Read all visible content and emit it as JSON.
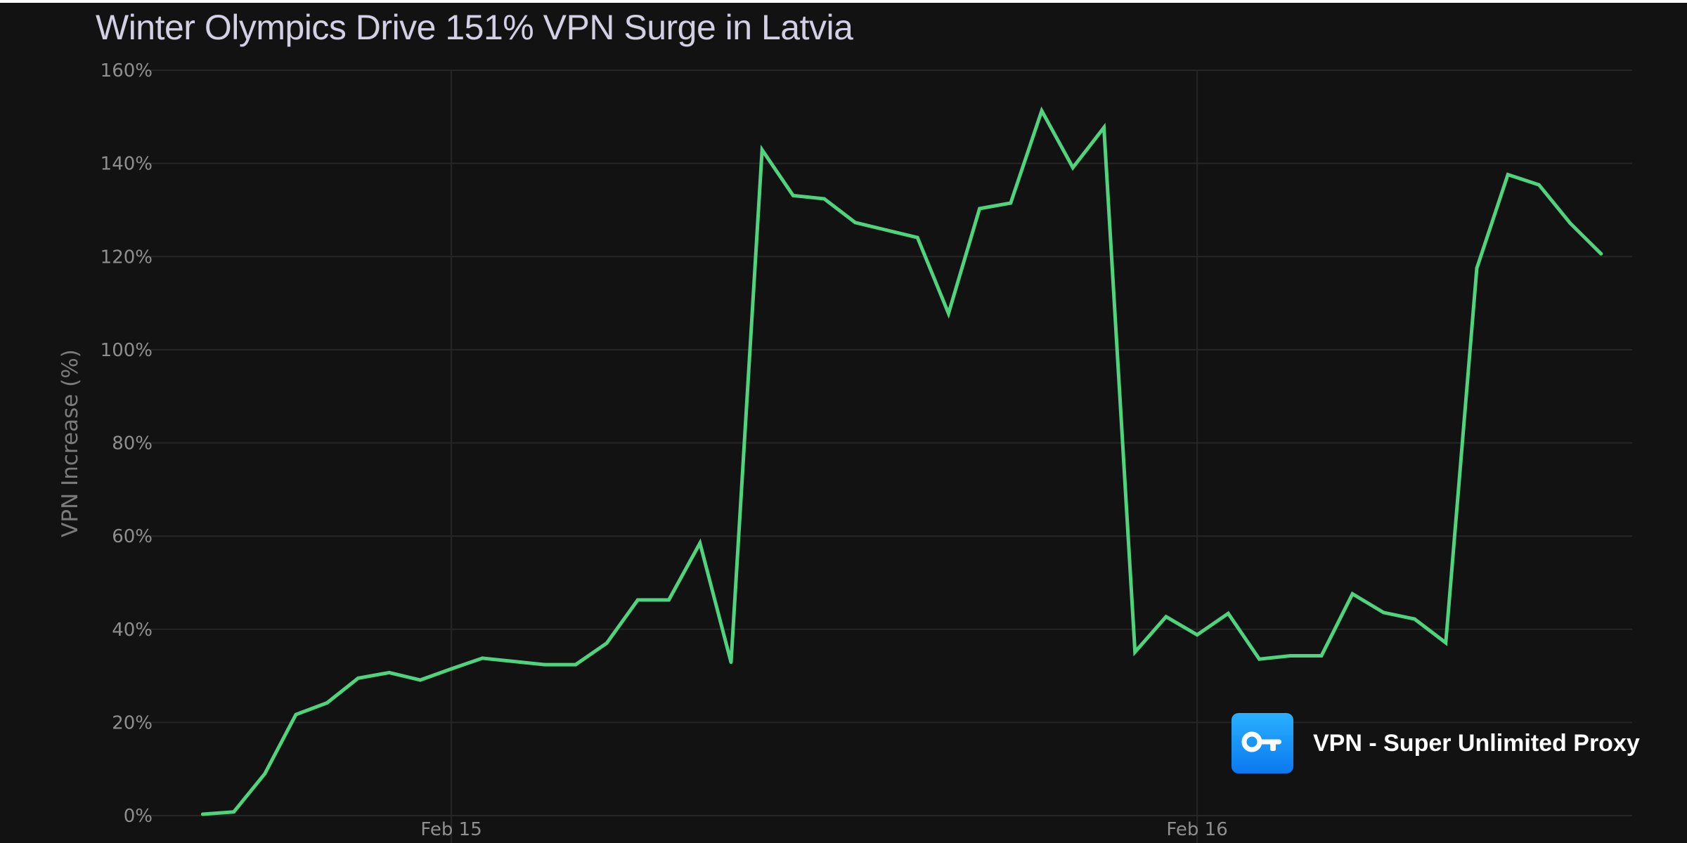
{
  "chart_data": {
    "type": "line",
    "title": "Winter Olympics Drive 151% VPN Surge in Latvia",
    "ylabel": "VPN Increase (%)",
    "xlabel": "",
    "ylim": [
      0,
      160
    ],
    "yticks": [
      "0%",
      "20%",
      "40%",
      "60%",
      "80%",
      "100%",
      "120%",
      "140%",
      "160%"
    ],
    "xticks": [
      {
        "label": "Feb 15",
        "time": "2026-02-15T00:00"
      },
      {
        "label": "Feb 16",
        "time": "2026-02-16T00:00"
      }
    ],
    "xlim": [
      "2026-02-14T14:00",
      "2026-02-16T14:00"
    ],
    "grid": true,
    "line_color": "#4fd47d",
    "series": [
      {
        "x": [
          "2026-02-14T16:00",
          "2026-02-14T17:00",
          "2026-02-14T18:00",
          "2026-02-14T19:00",
          "2026-02-14T20:00",
          "2026-02-14T21:00",
          "2026-02-14T22:00",
          "2026-02-14T23:00",
          "2026-02-15T00:00",
          "2026-02-15T01:00",
          "2026-02-15T02:00",
          "2026-02-15T03:00",
          "2026-02-15T04:00",
          "2026-02-15T05:00",
          "2026-02-15T06:00",
          "2026-02-15T07:00",
          "2026-02-15T08:00",
          "2026-02-15T09:00",
          "2026-02-15T10:00",
          "2026-02-15T11:00",
          "2026-02-15T12:00",
          "2026-02-15T13:00",
          "2026-02-15T14:00",
          "2026-02-15T15:00",
          "2026-02-15T16:00",
          "2026-02-15T17:00",
          "2026-02-15T18:00",
          "2026-02-15T19:00",
          "2026-02-15T20:00",
          "2026-02-15T21:00",
          "2026-02-15T22:00",
          "2026-02-15T23:00",
          "2026-02-16T00:00",
          "2026-02-16T01:00",
          "2026-02-16T02:00",
          "2026-02-16T03:00",
          "2026-02-16T04:00",
          "2026-02-16T05:00",
          "2026-02-16T06:00",
          "2026-02-16T07:00",
          "2026-02-16T08:00",
          "2026-02-16T09:00",
          "2026-02-16T10:00",
          "2026-02-16T11:00",
          "2026-02-16T12:00",
          "2026-02-16T13:00"
        ],
        "values": [
          0.3,
          0.8,
          9,
          21.7,
          24.2,
          29.5,
          30.7,
          29.1,
          31.5,
          33.8,
          33.1,
          32.4,
          32.4,
          37,
          46.3,
          46.3,
          58.5,
          32.9,
          142.9,
          133.1,
          132.4,
          127.3,
          125.7,
          124.1,
          107.8,
          130.3,
          131.5,
          151.3,
          139.1,
          147.7,
          35.1,
          42.7,
          38.8,
          43.4,
          33.6,
          34.3,
          34.3,
          47.6,
          43.6,
          42.2,
          37.1,
          117.5,
          137.6,
          135.4,
          127.2,
          120.6
        ]
      }
    ]
  },
  "brand": {
    "name": "VPN - Super Unlimited Proxy",
    "icon": "key-icon",
    "color": "#0a84ff"
  }
}
